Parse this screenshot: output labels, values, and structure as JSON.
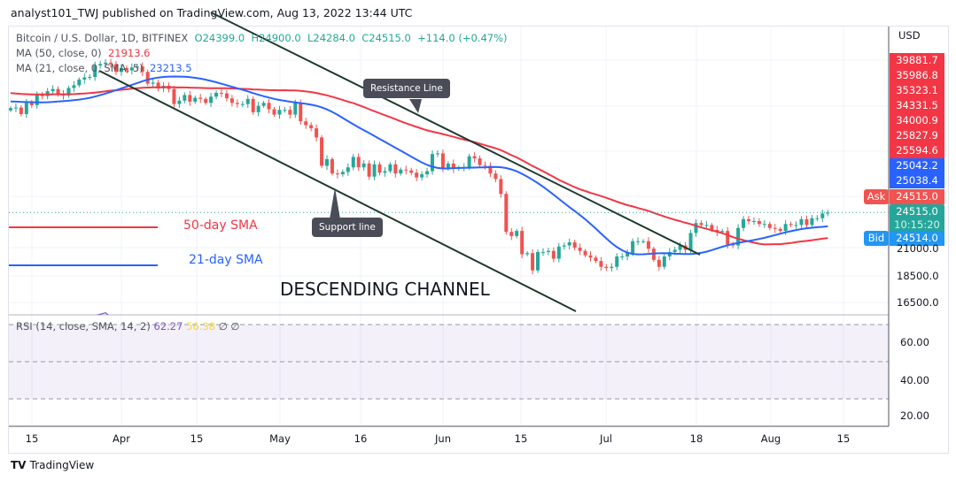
{
  "header": {
    "published": "analyst101_TWJ published on TradingView.com, Aug 13, 2022 13:44 UTC"
  },
  "legend": {
    "symbol": "Bitcoin / U.S. Dollar, 1D, BITFINEX",
    "o": "O24399.0",
    "h": "H24900.0",
    "l": "L24284.0",
    "c": "C24515.0",
    "chg": "+114.0 (+0.47%)",
    "ma50_label": "MA (50, close, 0)",
    "ma50_value": "21913.6",
    "ma21_label": "MA (21, close, 0, SMA, 5)",
    "ma21_value": "23213.5",
    "rsi_label": "RSI (14, close, SMA, 14, 2)",
    "rsi_value": "62.27",
    "rsi_ma_value": "56.38",
    "rsi_na1": "∅",
    "rsi_na2": "∅"
  },
  "price_axis": {
    "currency": "USD",
    "order_labels": [
      {
        "v": "39881.7",
        "c": "#f23645"
      },
      {
        "v": "35986.8",
        "c": "#f23645"
      },
      {
        "v": "35323.1",
        "c": "#f23645"
      },
      {
        "v": "34331.5",
        "c": "#f23645"
      },
      {
        "v": "34000.9",
        "c": "#f23645"
      },
      {
        "v": "25827.9",
        "c": "#f23645"
      },
      {
        "v": "25594.6",
        "c": "#f23645"
      },
      {
        "v": "25042.2",
        "c": "#2962ff"
      },
      {
        "v": "25038.4",
        "c": "#2962ff"
      }
    ],
    "ask_tag": "Ask",
    "ask": "24515.0",
    "last": "24515.0",
    "countdown": "10:15:20",
    "bid_tag": "Bid",
    "bid": "24514.0",
    "ticks": [
      "21000.0",
      "18500.0",
      "16500.0"
    ],
    "scale": "log"
  },
  "rsi_axis": {
    "ticks": [
      "60.00",
      "40.00",
      "20.00"
    ]
  },
  "time_axis": {
    "ticks": [
      "15",
      "Apr",
      "15",
      "May",
      "16",
      "Jun",
      "15",
      "Jul",
      "18",
      "Aug",
      "15"
    ]
  },
  "annotations": {
    "resistance": "Resistance Line",
    "support": "Support line",
    "sma50": "50-day SMA",
    "sma21": "21-day SMA",
    "channel": "DESCENDING CHANNEL"
  },
  "footer": {
    "brand": "TradingView"
  },
  "colors": {
    "up": "#26a69a",
    "down": "#ef5350",
    "ma50": "#f23645",
    "ma21": "#2962ff",
    "rsi": "#7e57c2",
    "rsi_ma": "#f5d83b"
  },
  "chart_data": {
    "type": "candlestick",
    "title": "Bitcoin / U.S. Dollar, 1D, BITFINEX",
    "interval": "1D",
    "start_date": "2022-03-11",
    "end_date": "2022-08-13",
    "yscale": "log",
    "close": [
      38800,
      38900,
      37800,
      39700,
      39300,
      41100,
      40900,
      41800,
      42200,
      41300,
      41000,
      42400,
      42900,
      44000,
      44400,
      44500,
      46800,
      47100,
      47400,
      47100,
      45500,
      46300,
      45800,
      46400,
      46600,
      45500,
      43200,
      43400,
      42300,
      42800,
      42200,
      39500,
      40100,
      41100,
      39900,
      40600,
      40400,
      39700,
      40800,
      41500,
      41400,
      40500,
      39700,
      39500,
      39500,
      40400,
      38100,
      39200,
      39700,
      38600,
      37700,
      38500,
      38500,
      37700,
      39700,
      36600,
      36000,
      35500,
      34100,
      30100,
      31000,
      29100,
      29000,
      29300,
      29900,
      31300,
      29900,
      30400,
      28700,
      30300,
      29200,
      29400,
      30300,
      29100,
      29600,
      29500,
      29200,
      28600,
      29000,
      29400,
      31700,
      31800,
      29800,
      30400,
      29700,
      29900,
      29900,
      31400,
      31100,
      30200,
      30100,
      29100,
      28400,
      26600,
      22500,
      22100,
      22600,
      20400,
      20500,
      19000,
      20600,
      20600,
      20700,
      20000,
      21100,
      21200,
      21500,
      21000,
      20700,
      20300,
      20100,
      19800,
      19300,
      19200,
      19300,
      20200,
      20200,
      20500,
      21600,
      21600,
      21600,
      20900,
      19900,
      19300,
      20200,
      20600,
      20800,
      21200,
      20800,
      22400,
      23400,
      23200,
      23200,
      22700,
      22500,
      22600,
      21300,
      21200,
      22900,
      23800,
      23600,
      23600,
      23300,
      23300,
      22900,
      22800,
      22600,
      23300,
      23200,
      23200,
      23800,
      23200,
      23900,
      23900,
      24400,
      24515
    ],
    "indicators": [
      "MA 50",
      "MA 21",
      "RSI 14",
      "RSI SMA 14"
    ]
  }
}
